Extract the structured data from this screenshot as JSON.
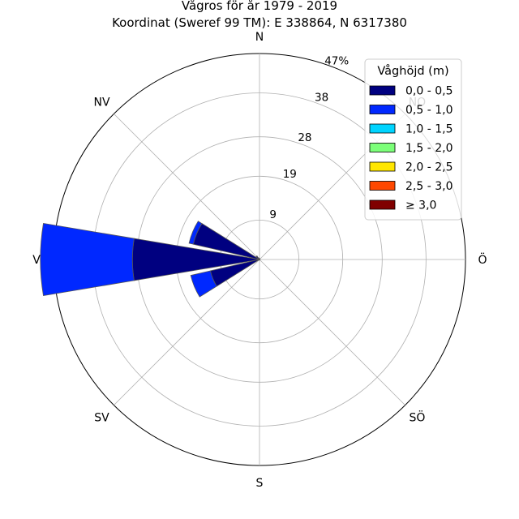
{
  "chart_data": {
    "type": "polar-bar",
    "title": "Vågros för år 1979 - 2019",
    "subtitle": "Koordinat (Sweref 99 TM): E 338864, N 6317380",
    "directions": [
      "N",
      "NO",
      "Ö",
      "SÖ",
      "S",
      "SV",
      "V",
      "NV"
    ],
    "radial_ticks": [
      "9",
      "19",
      "28",
      "38",
      "47%"
    ],
    "radial_max": 47,
    "legend": {
      "title": "Våghöjd (m)",
      "placement": "top-right",
      "entries": [
        "0,0 - 0,5",
        "0,5 - 1,0",
        "1,0 - 1,5",
        "1,5 - 2,0",
        "2,0 - 2,5",
        "2,5 - 3,0",
        "≥ 3,0"
      ],
      "colors": [
        "#000080",
        "#0028ff",
        "#00d4ff",
        "#7cff79",
        "#ffe600",
        "#ff4800",
        "#800000"
      ]
    },
    "series": [
      {
        "name": "0,0 - 0,5",
        "values": {
          "N": 0.2,
          "NNÖ": 0.1,
          "NÖ": 0.1,
          "ÖNÖ": 0.1,
          "Ö": 0.1,
          "ÖSÖ": 0.1,
          "SÖ": 0.1,
          "SSÖ": 0.1,
          "S": 0.1,
          "SSV": 0.1,
          "SV": 0.2,
          "VSV": 11.5,
          "V": 29.0,
          "VNV": 15.5,
          "NV": 0.9,
          "NNV": 0.3
        }
      },
      {
        "name": "0,5 - 1,0",
        "values": {
          "N": 0.05,
          "NNÖ": 0,
          "NÖ": 0,
          "ÖNÖ": 0,
          "Ö": 0,
          "ÖSÖ": 0,
          "SÖ": 0,
          "SSÖ": 0,
          "S": 0,
          "SSV": 0,
          "SV": 0,
          "VSV": 4.6,
          "V": 21.0,
          "VNV": 1.0,
          "NV": 0.1,
          "NNV": 0.05
        }
      },
      {
        "name": "1,0 - 1,5",
        "values": {
          "N": 0,
          "NNÖ": 0,
          "NÖ": 0,
          "ÖNÖ": 0,
          "Ö": 0,
          "ÖSÖ": 0,
          "SÖ": 0,
          "SSÖ": 0,
          "S": 0,
          "SSV": 0,
          "SV": 0,
          "VSV": 0,
          "V": 0,
          "VNV": 0,
          "NV": 0,
          "NNV": 0
        }
      },
      {
        "name": "1,5 - 2,0",
        "values": {
          "N": 0,
          "NNÖ": 0,
          "NÖ": 0,
          "ÖNÖ": 0,
          "Ö": 0,
          "ÖSÖ": 0,
          "SÖ": 0,
          "SSÖ": 0,
          "S": 0,
          "SSV": 0,
          "SV": 0,
          "VSV": 0,
          "V": 0,
          "VNV": 0,
          "NV": 0,
          "NNV": 0
        }
      },
      {
        "name": "2,0 - 2,5",
        "values": {
          "N": 0,
          "NNÖ": 0,
          "NÖ": 0,
          "ÖNÖ": 0,
          "Ö": 0,
          "ÖSÖ": 0,
          "SÖ": 0,
          "SSÖ": 0,
          "S": 0,
          "SSV": 0,
          "SV": 0,
          "VSV": 0,
          "V": 0,
          "VNV": 0,
          "NV": 0,
          "NNV": 0
        }
      },
      {
        "name": "2,5 - 3,0",
        "values": {
          "N": 0,
          "NNÖ": 0,
          "NÖ": 0,
          "ÖNÖ": 0,
          "Ö": 0,
          "ÖSÖ": 0,
          "SÖ": 0,
          "SSÖ": 0,
          "S": 0,
          "SSV": 0,
          "SV": 0,
          "VSV": 0,
          "V": 0,
          "VNV": 0,
          "NV": 0,
          "NNV": 0
        }
      },
      {
        "name": "≥ 3,0",
        "values": {
          "N": 0,
          "NNÖ": 0,
          "NÖ": 0,
          "ÖNÖ": 0,
          "Ö": 0,
          "ÖSÖ": 0,
          "SÖ": 0,
          "SSÖ": 0,
          "S": 0,
          "SSV": 0,
          "SV": 0,
          "VSV": 0,
          "V": 0,
          "VNV": 0,
          "NV": 0,
          "NNV": 0
        }
      }
    ]
  }
}
